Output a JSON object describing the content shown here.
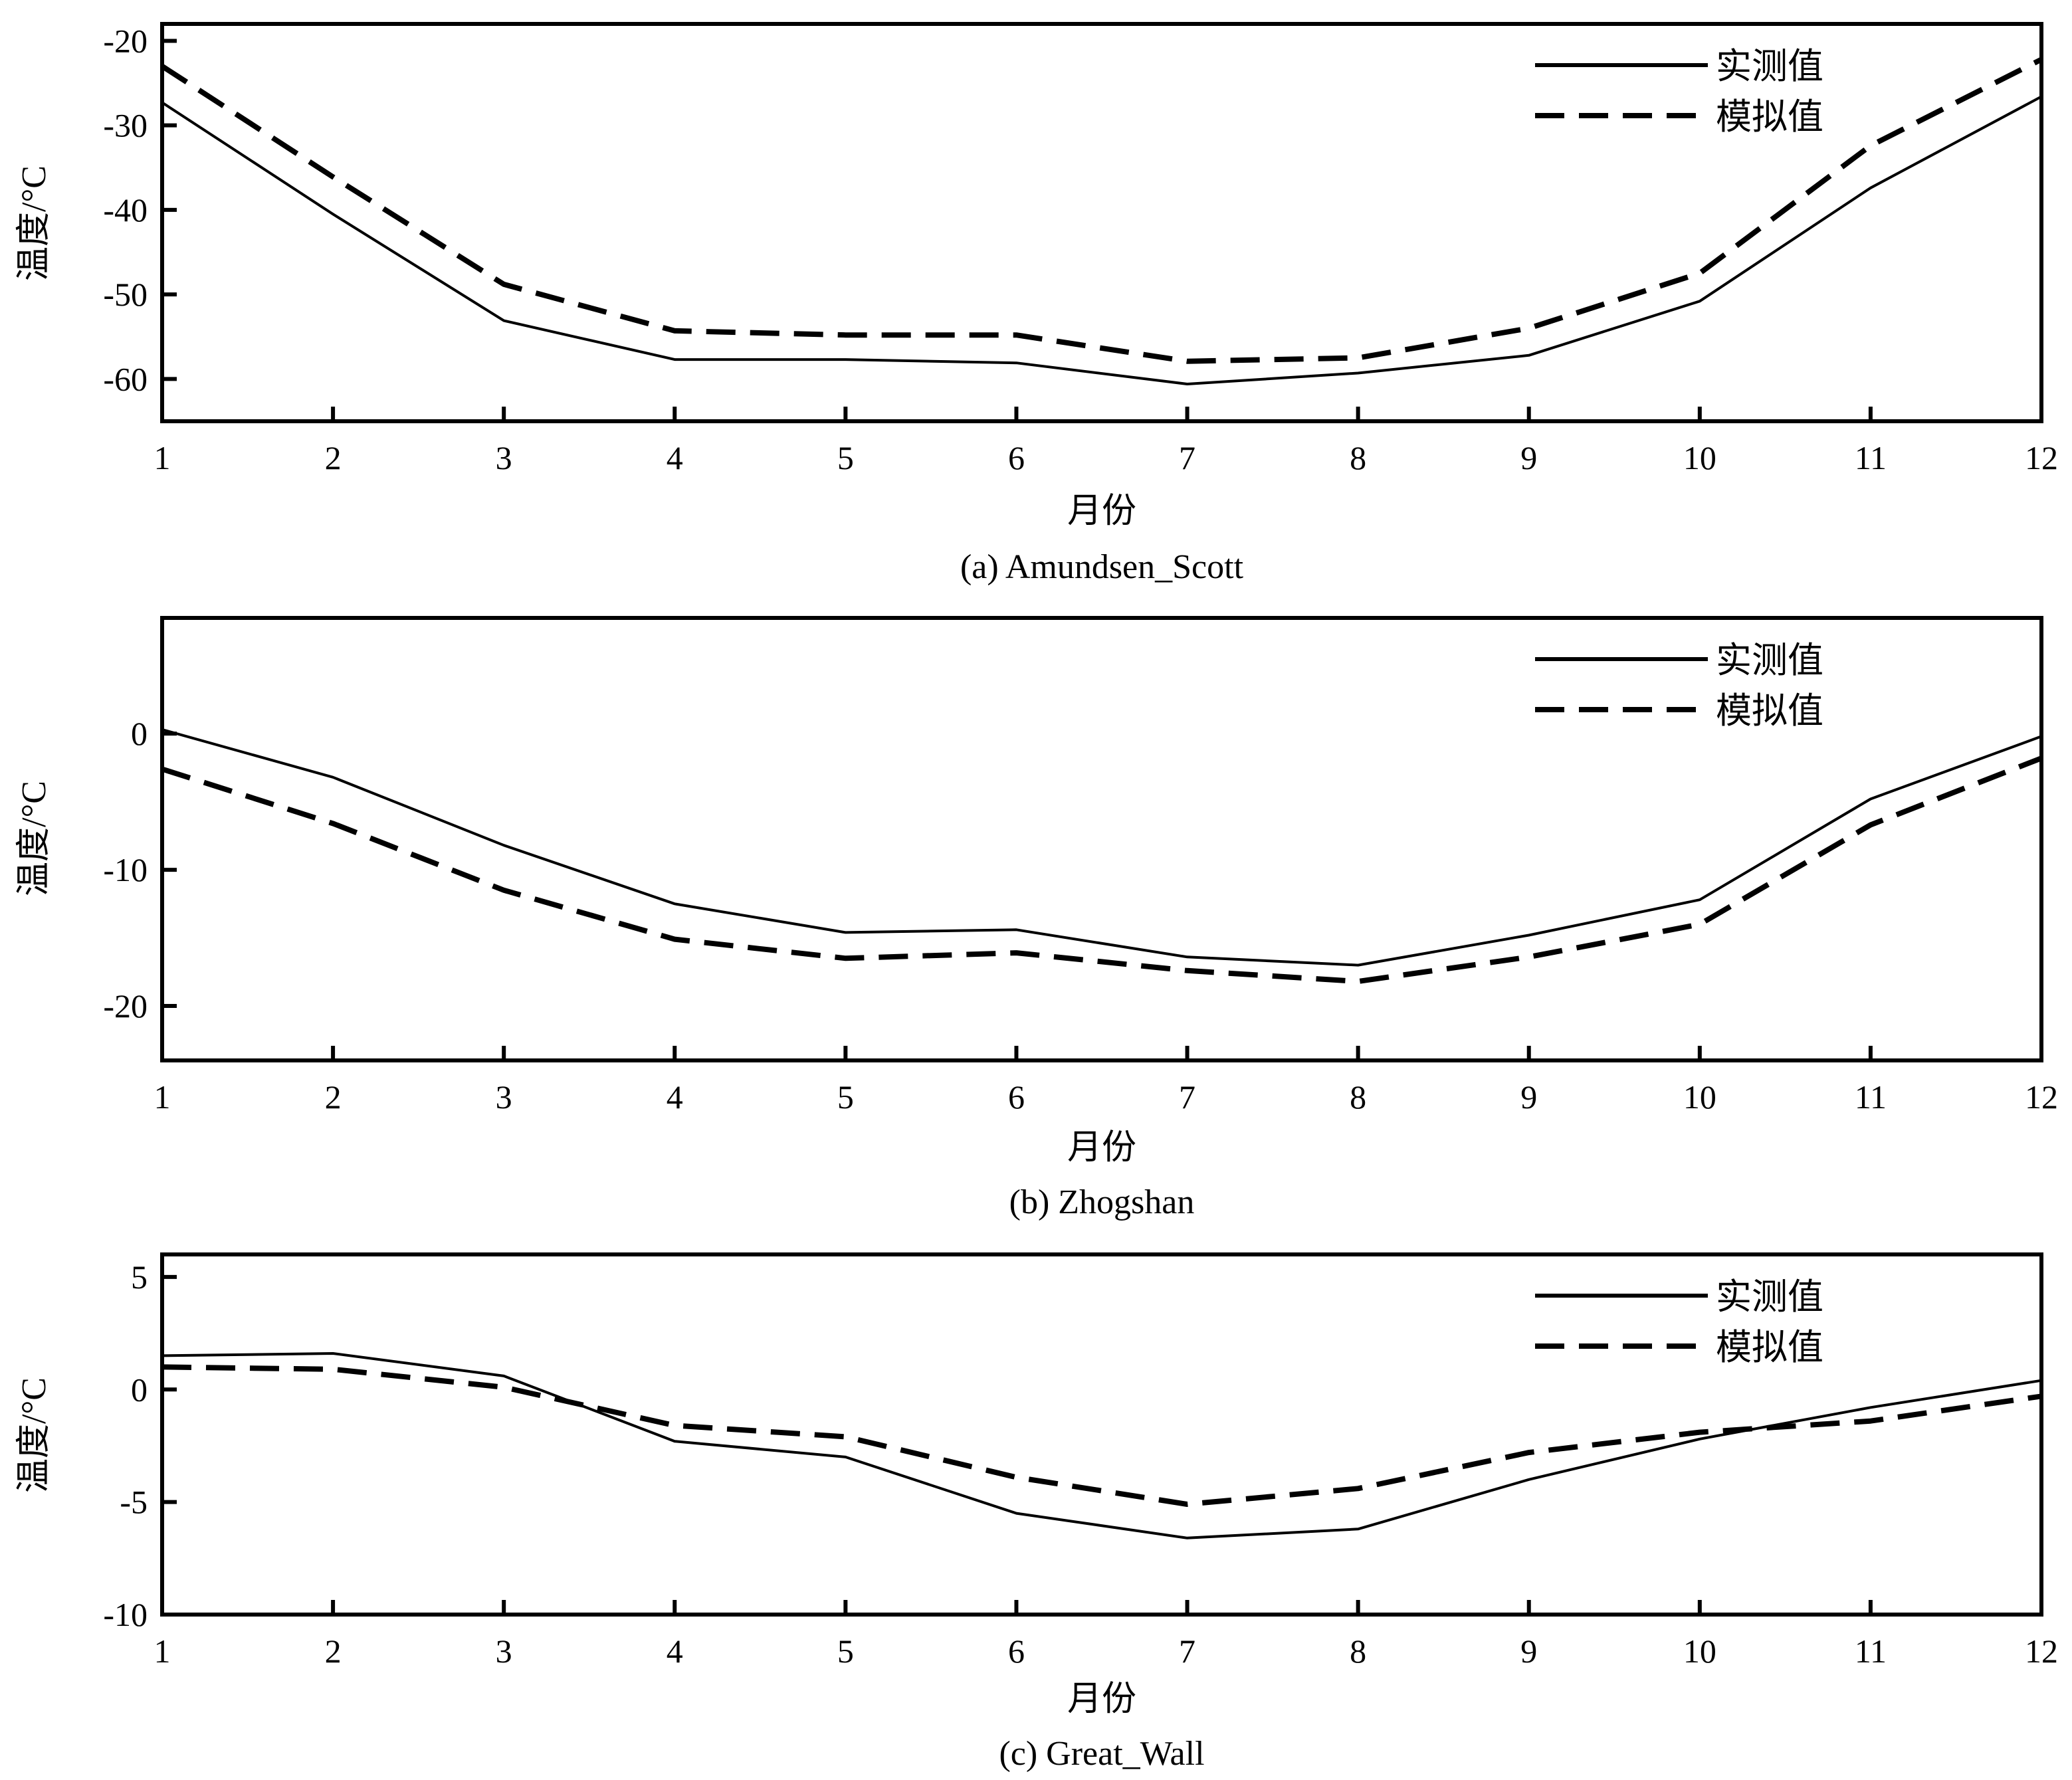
{
  "chart_data": [
    {
      "type": "line",
      "caption": "(a) Amundsen_Scott",
      "xlabel": "月份",
      "ylabel": "温度/°C",
      "x": [
        1,
        2,
        3,
        4,
        5,
        6,
        7,
        8,
        9,
        10,
        11,
        12
      ],
      "xlim": [
        1,
        12
      ],
      "ylim": [
        -65,
        -18
      ],
      "yticks": [
        -20,
        -30,
        -40,
        -50,
        -60
      ],
      "legend_position": "top-right",
      "series": [
        {
          "name": "实测值",
          "style": "solid",
          "values": [
            -27.3,
            -40.5,
            -53.1,
            -57.7,
            -57.7,
            -58.1,
            -60.6,
            -59.3,
            -57.2,
            -50.8,
            -37.4,
            -26.6
          ]
        },
        {
          "name": "模拟值",
          "style": "dashed",
          "values": [
            -23.0,
            -36.1,
            -48.8,
            -54.3,
            -54.8,
            -54.8,
            -57.9,
            -57.5,
            -54.0,
            -47.5,
            -32.4,
            -22.2
          ]
        }
      ]
    },
    {
      "type": "line",
      "caption": "(b) Zhogshan",
      "xlabel": "月份",
      "ylabel": "温度/°C",
      "x": [
        1,
        2,
        3,
        4,
        5,
        6,
        7,
        8,
        9,
        10,
        11,
        12
      ],
      "xlim": [
        1,
        12
      ],
      "ylim": [
        -24,
        8.5
      ],
      "yticks": [
        0,
        -10,
        -20
      ],
      "legend_position": "top-right",
      "series": [
        {
          "name": "实测值",
          "style": "solid",
          "values": [
            0.3,
            -3.2,
            -8.2,
            -12.5,
            -14.6,
            -14.4,
            -16.4,
            -17.0,
            -14.8,
            -12.2,
            -4.8,
            -0.2
          ]
        },
        {
          "name": "模拟值",
          "style": "dashed",
          "values": [
            -2.6,
            -6.6,
            -11.5,
            -15.1,
            -16.5,
            -16.1,
            -17.4,
            -18.2,
            -16.4,
            -14.0,
            -6.7,
            -1.8
          ]
        }
      ]
    },
    {
      "type": "line",
      "caption": "(c) Great_Wall",
      "xlabel": "月份",
      "ylabel": "温度/°C",
      "x": [
        1,
        2,
        3,
        4,
        5,
        6,
        7,
        8,
        9,
        10,
        11,
        12
      ],
      "xlim": [
        1,
        12
      ],
      "ylim": [
        -10,
        6
      ],
      "yticks": [
        5,
        0,
        -5,
        -10
      ],
      "legend_position": "top-right",
      "series": [
        {
          "name": "实测值",
          "style": "solid",
          "values": [
            1.5,
            1.6,
            0.6,
            -2.3,
            -3.0,
            -5.5,
            -6.6,
            -6.2,
            -4.0,
            -2.2,
            -0.8,
            0.4
          ]
        },
        {
          "name": "模拟值",
          "style": "dashed",
          "values": [
            1.0,
            0.9,
            0.1,
            -1.6,
            -2.1,
            -3.9,
            -5.1,
            -4.4,
            -2.8,
            -1.9,
            -1.4,
            -0.3
          ]
        }
      ]
    }
  ]
}
